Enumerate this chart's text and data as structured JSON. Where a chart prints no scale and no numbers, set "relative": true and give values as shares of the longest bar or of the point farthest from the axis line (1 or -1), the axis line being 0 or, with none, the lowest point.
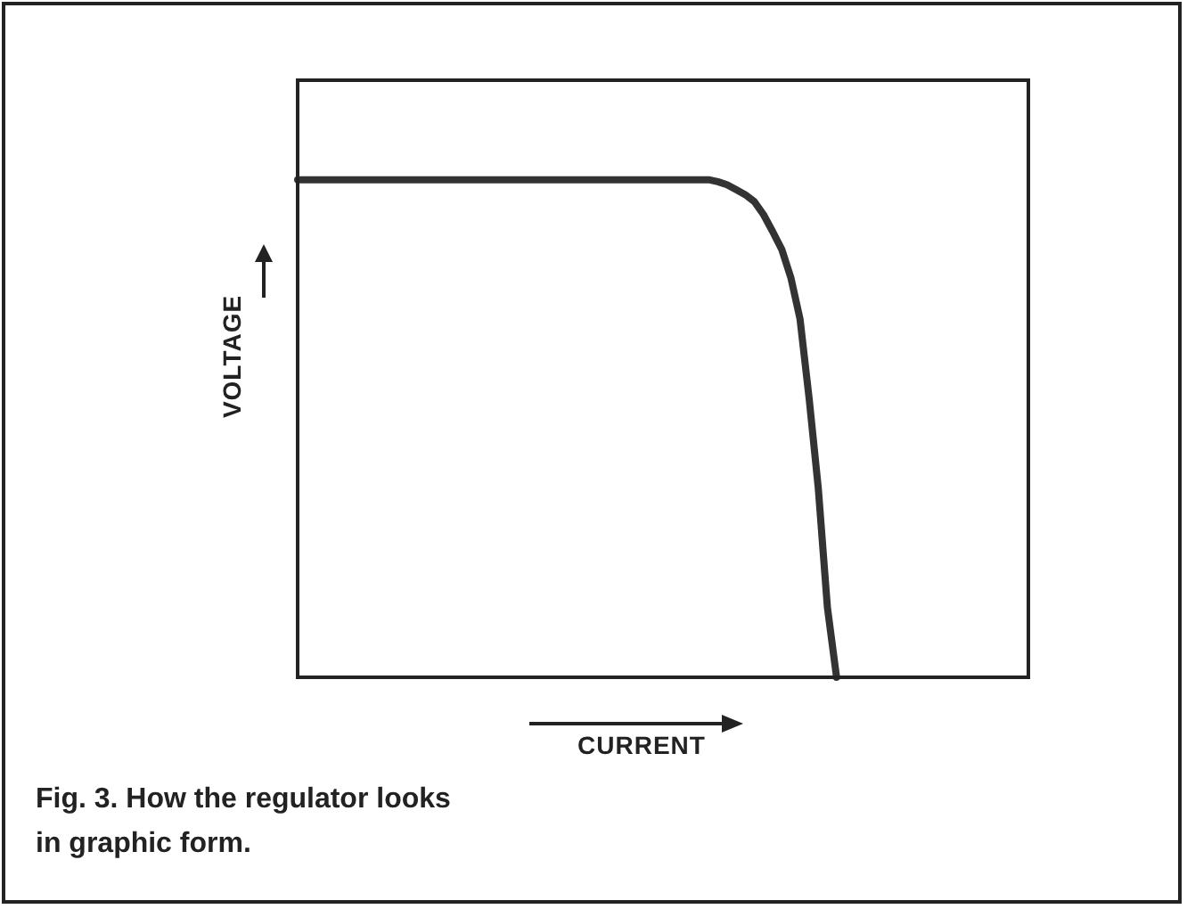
{
  "chart_data": {
    "type": "line",
    "relative": true,
    "xlabel": "CURRENT",
    "ylabel": "VOLTAGE",
    "annotations": [
      "Fig. 3. How the regulator looks in graphic form."
    ],
    "categories": [
      null,
      null,
      null,
      null,
      null,
      null,
      null,
      null,
      null,
      null,
      null,
      null,
      null,
      null,
      null,
      null,
      null,
      null,
      null,
      null,
      null,
      null,
      null,
      null,
      null,
      null,
      null,
      null,
      null,
      null,
      null,
      null,
      null,
      null,
      null,
      null,
      null,
      null,
      null,
      null,
      null,
      null,
      null,
      null,
      null,
      null,
      null,
      null,
      null,
      null,
      null,
      null,
      null,
      null,
      null,
      null,
      null,
      null,
      null,
      null,
      null,
      null,
      null,
      null,
      null,
      null,
      null,
      null,
      null,
      null,
      null,
      null,
      null,
      null,
      null,
      null,
      null,
      null,
      null,
      null,
      null
    ],
    "color": "#333333",
    "values": [
      1,
      1,
      1,
      1,
      1,
      1,
      1,
      1,
      1,
      1,
      1,
      1,
      1,
      1,
      1,
      1,
      1,
      1,
      1,
      1,
      1,
      1,
      1,
      1,
      1,
      1,
      1,
      1,
      1,
      1,
      1,
      1,
      1,
      1,
      1,
      1,
      1,
      1,
      1,
      1,
      1,
      1,
      1,
      1,
      1,
      1,
      0.996,
      0.99,
      0.98,
      0.97,
      0.956,
      0.93,
      0.896,
      0.86,
      0.803,
      0.72,
      0.56,
      0.38,
      0.14,
      0,
      null,
      null,
      null,
      null,
      null,
      null,
      null,
      null,
      null,
      null,
      null,
      null,
      null,
      null,
      null,
      null,
      null,
      null,
      null,
      null,
      null
    ]
  }
}
